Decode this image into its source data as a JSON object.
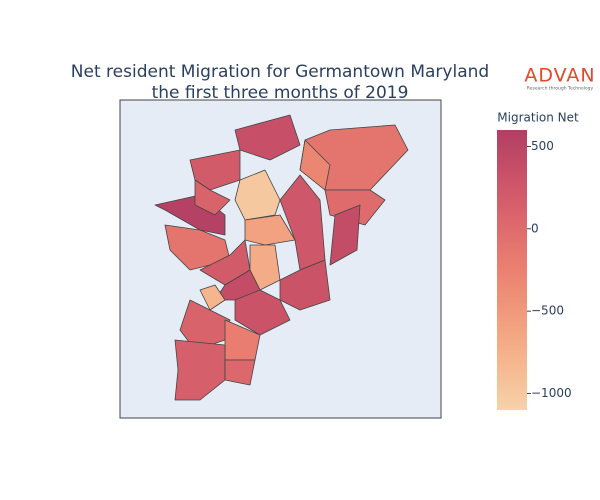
{
  "chart_data": {
    "type": "choropleth",
    "title": [
      "Net resident Migration for Germantown Maryland",
      "the first three months of 2019"
    ],
    "colorbar_title": "Migration Net",
    "colorscale": [
      "#f6d2a9",
      "#f5b78e",
      "#f19c7c",
      "#ea8171",
      "#dd686c",
      "#ca5268",
      "#b13f64"
    ],
    "clim": [
      -1100,
      600
    ],
    "cticks": [
      500,
      0,
      {
        "value": -500,
        "label": "−500"
      },
      {
        "value": -1000,
        "label": "−1000"
      }
    ],
    "values": [
      350,
      -100,
      -300,
      0,
      400,
      -1000,
      200,
      550,
      -100,
      -600,
      250,
      -700,
      200,
      300,
      400,
      -800,
      300,
      100,
      -200,
      150,
      50,
      100
    ]
  },
  "logo": {
    "name": "ADVAN",
    "tagline": "Research through Technology"
  }
}
